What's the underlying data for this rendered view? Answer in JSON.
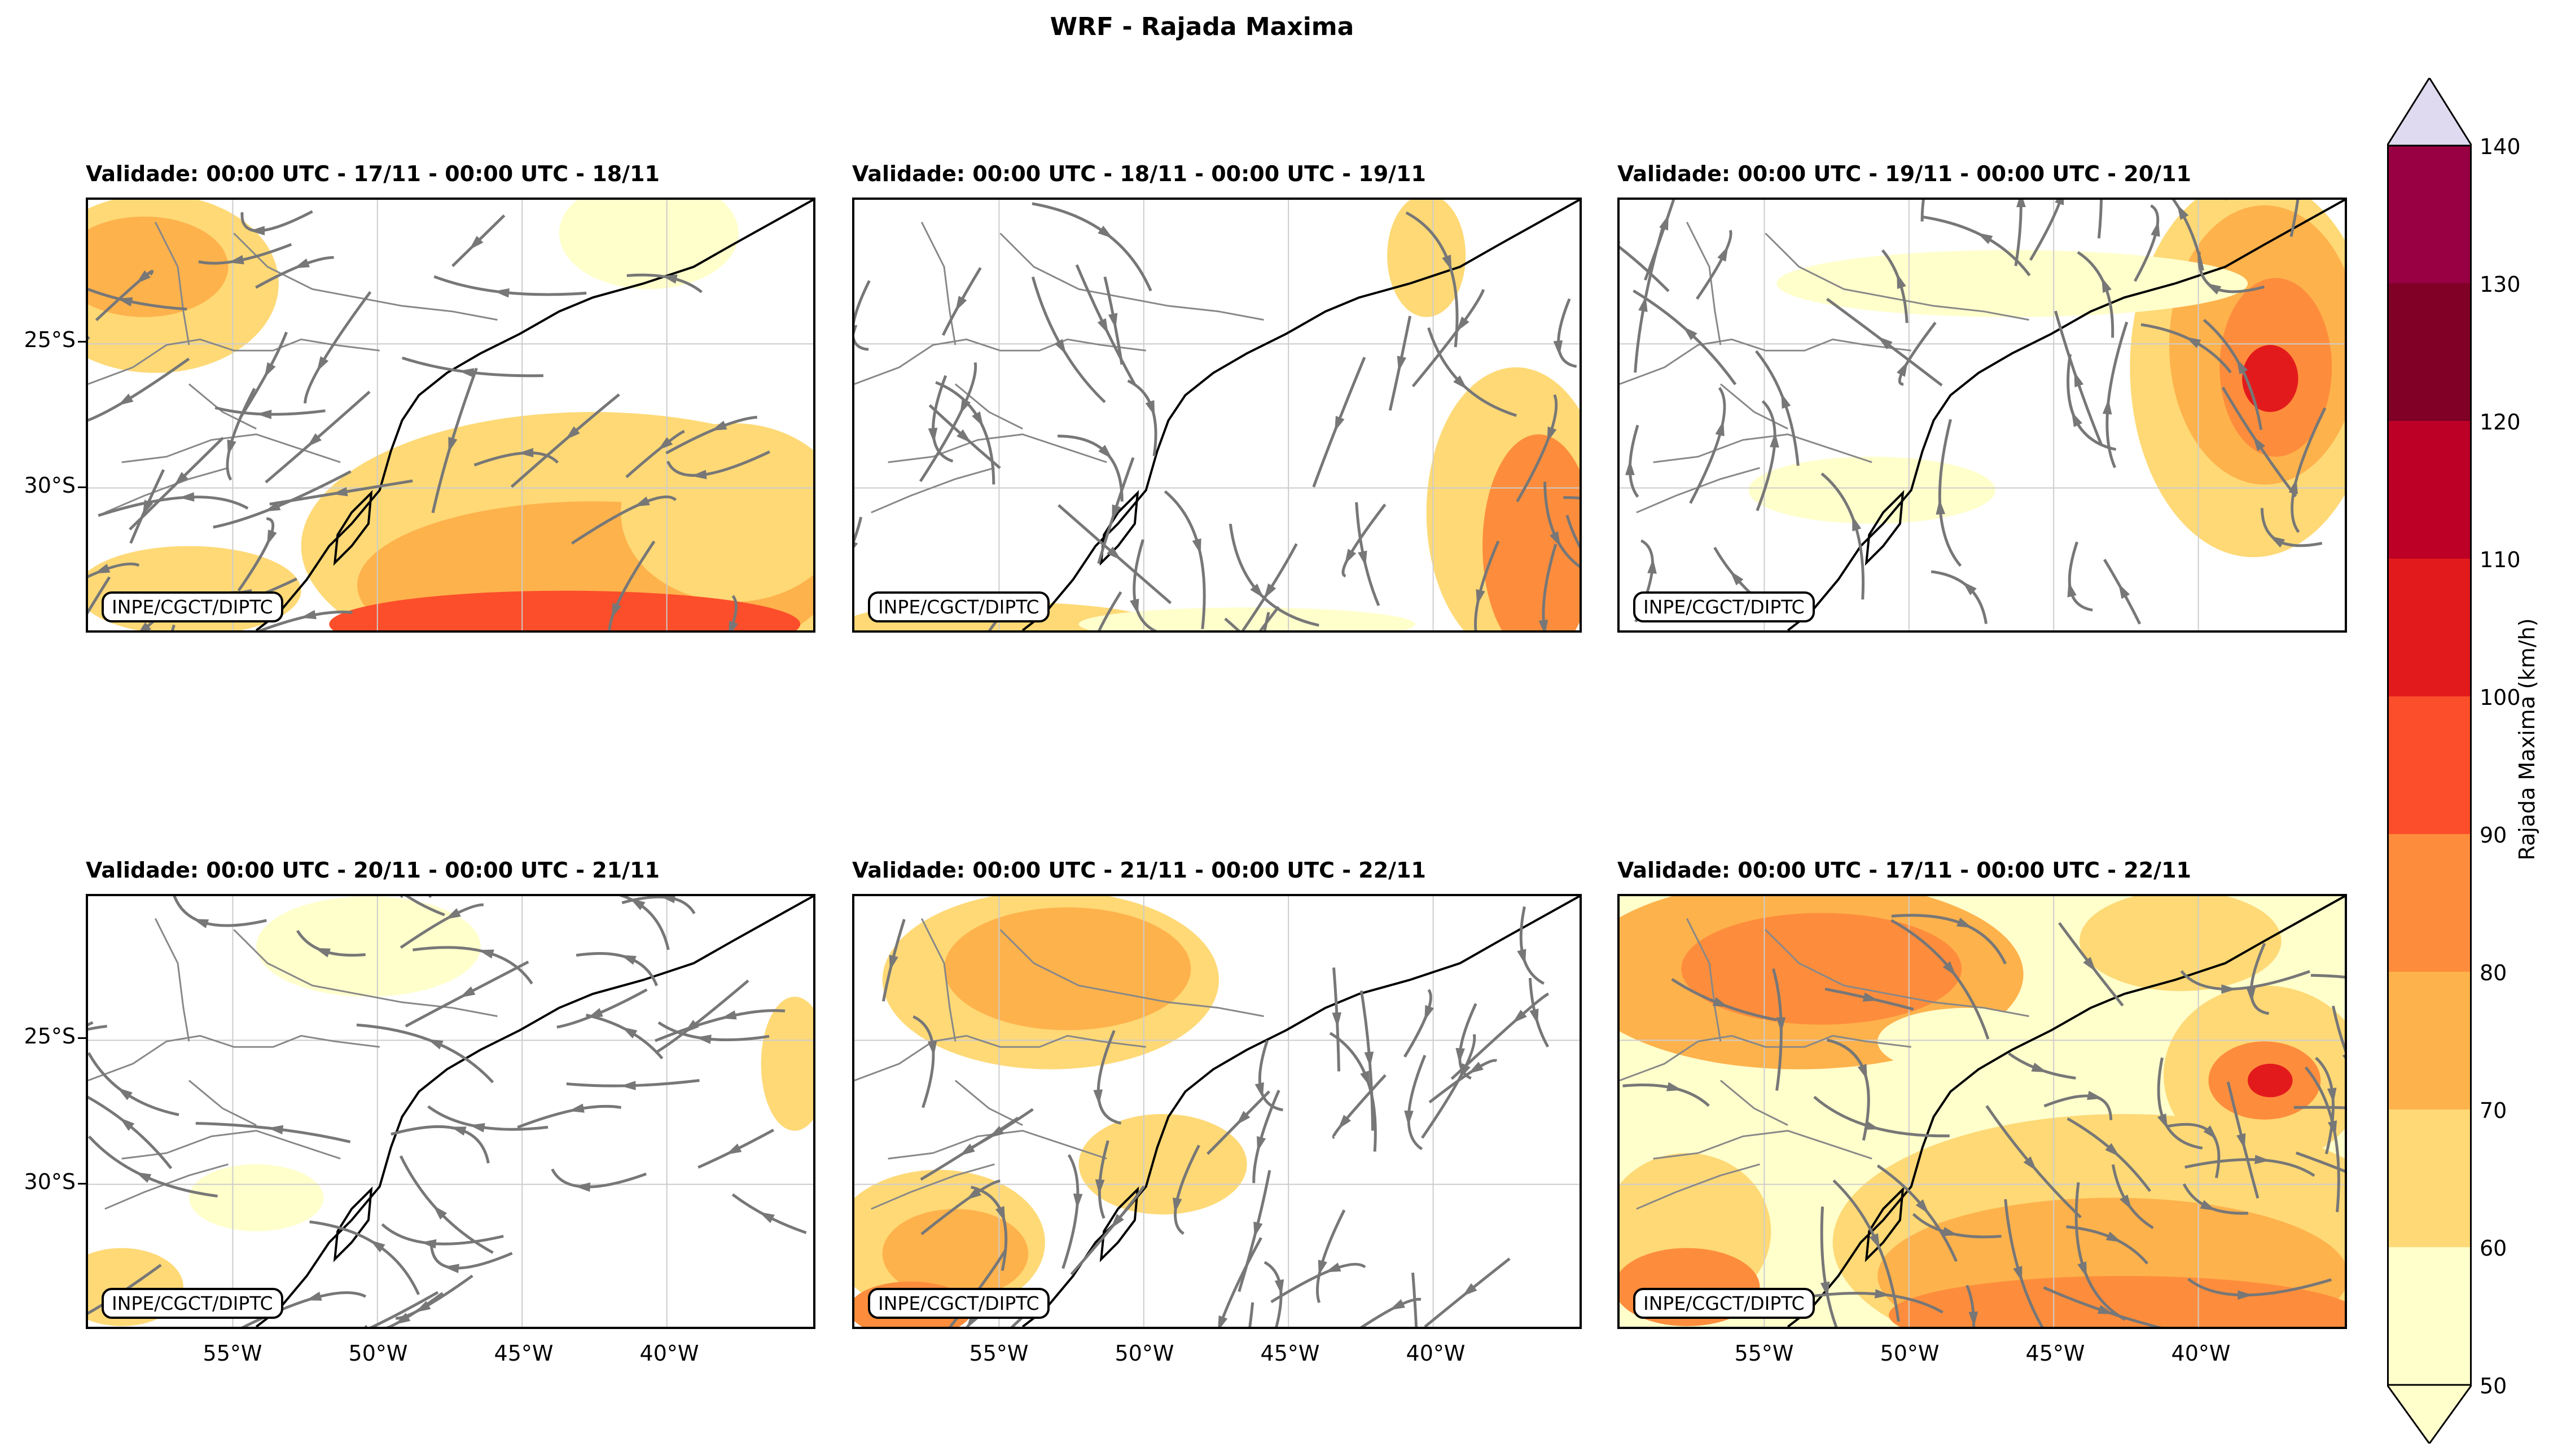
{
  "title": "WRF - Rajada Maxima",
  "credit": "INPE/CGCT/DIPTC",
  "panels": [
    {
      "title": "Validade: 00:00 UTC - 17/11 - 00:00 UTC - 18/11",
      "pattern": "p1"
    },
    {
      "title": "Validade: 00:00 UTC - 18/11 - 00:00 UTC - 19/11",
      "pattern": "p2"
    },
    {
      "title": "Validade: 00:00 UTC - 19/11 - 00:00 UTC - 20/11",
      "pattern": "p3"
    },
    {
      "title": "Validade: 00:00 UTC - 20/11 - 00:00 UTC - 21/11",
      "pattern": "p4"
    },
    {
      "title": "Validade: 00:00 UTC - 21/11 - 00:00 UTC - 22/11",
      "pattern": "p5"
    },
    {
      "title": "Validade: 00:00 UTC - 17/11 - 00:00 UTC - 22/11",
      "pattern": "p6"
    }
  ],
  "y_ticks": [
    "25°S",
    "30°S"
  ],
  "x_ticks": [
    "55°W",
    "50°W",
    "45°W",
    "40°W"
  ],
  "colorbar": {
    "label": "Rajada Maxima (km/h)",
    "ticks": [
      "50",
      "60",
      "70",
      "80",
      "90",
      "100",
      "110",
      "120",
      "130",
      "140"
    ],
    "colors": [
      "#ffffcc",
      "#fed976",
      "#feb24c",
      "#fd8d3c",
      "#fc4e2a",
      "#e31a1c",
      "#bd0026",
      "#800026",
      "#980043",
      "#e7298a",
      "#c994c7",
      "#e0daf0"
    ]
  },
  "colors": {
    "streamline": "#777777",
    "coast": "#000000",
    "border": "#888888"
  }
}
